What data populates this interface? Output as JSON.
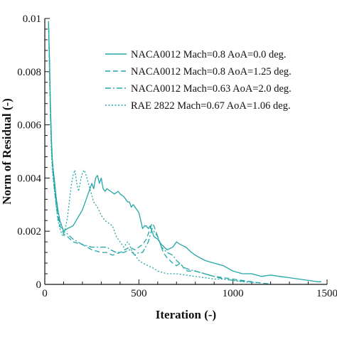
{
  "colors": {
    "series": "#23a6a6",
    "axis": "#111111",
    "background": "#ffffff"
  },
  "chart_data": {
    "type": "line",
    "title": "",
    "xlabel": "Iteration (-)",
    "ylabel": "Norm of Residual (-)",
    "xlim": [
      0,
      1500
    ],
    "ylim": [
      0,
      0.01
    ],
    "x_ticks": [
      0,
      500,
      1000,
      1500
    ],
    "x_tick_labels": [
      "0",
      "500",
      "1000",
      "1500"
    ],
    "y_ticks": [
      0,
      0.002,
      0.004,
      0.006,
      0.008,
      0.01
    ],
    "y_tick_labels": [
      "0",
      "0.002",
      "0.004",
      "0.006",
      "0.008",
      "0.01"
    ],
    "grid": false,
    "legend_position": "top-right",
    "series": [
      {
        "name": "NACA0012 Mach=0.8 AoA=0.0 deg.",
        "dash": "solid",
        "points": [
          [
            20,
            0.0098
          ],
          [
            25,
            0.0085
          ],
          [
            30,
            0.0068
          ],
          [
            35,
            0.0055
          ],
          [
            40,
            0.0047
          ],
          [
            45,
            0.0043
          ],
          [
            50,
            0.004
          ],
          [
            60,
            0.0033
          ],
          [
            70,
            0.0028
          ],
          [
            80,
            0.0024
          ],
          [
            90,
            0.0022
          ],
          [
            100,
            0.002
          ],
          [
            120,
            0.0021
          ],
          [
            150,
            0.0022
          ],
          [
            200,
            0.0028
          ],
          [
            230,
            0.0034
          ],
          [
            250,
            0.0038
          ],
          [
            260,
            0.0036
          ],
          [
            270,
            0.004
          ],
          [
            280,
            0.0041
          ],
          [
            290,
            0.0038
          ],
          [
            300,
            0.004
          ],
          [
            310,
            0.0036
          ],
          [
            320,
            0.0035
          ],
          [
            330,
            0.0036
          ],
          [
            350,
            0.0035
          ],
          [
            370,
            0.0034
          ],
          [
            390,
            0.0035
          ],
          [
            400,
            0.0034
          ],
          [
            420,
            0.0033
          ],
          [
            440,
            0.0031
          ],
          [
            450,
            0.0031
          ],
          [
            460,
            0.0029
          ],
          [
            470,
            0.003
          ],
          [
            490,
            0.0028
          ],
          [
            500,
            0.0027
          ],
          [
            510,
            0.0024
          ],
          [
            520,
            0.0021
          ],
          [
            530,
            0.0022
          ],
          [
            540,
            0.0022
          ],
          [
            550,
            0.0021
          ],
          [
            560,
            0.0022
          ],
          [
            580,
            0.0018
          ],
          [
            600,
            0.0017
          ],
          [
            620,
            0.0015
          ],
          [
            650,
            0.0013
          ],
          [
            680,
            0.0014
          ],
          [
            700,
            0.0016
          ],
          [
            720,
            0.0015
          ],
          [
            750,
            0.0014
          ],
          [
            780,
            0.0012
          ],
          [
            800,
            0.0011
          ],
          [
            850,
            0.0009
          ],
          [
            900,
            0.0008
          ],
          [
            950,
            0.0007
          ],
          [
            1000,
            0.0005
          ],
          [
            1050,
            0.0004
          ],
          [
            1100,
            0.0004
          ],
          [
            1150,
            0.0003
          ],
          [
            1200,
            0.00035
          ],
          [
            1250,
            0.0003
          ],
          [
            1300,
            0.00025
          ],
          [
            1350,
            0.0002
          ],
          [
            1400,
            0.00015
          ],
          [
            1450,
            0.0001
          ],
          [
            1470,
            0.0001
          ]
        ]
      },
      {
        "name": "NACA0012 Mach=0.8 AoA=1.25 deg.",
        "dash": "dashed",
        "points": [
          [
            20,
            0.0099
          ],
          [
            25,
            0.0082
          ],
          [
            30,
            0.0065
          ],
          [
            35,
            0.0052
          ],
          [
            40,
            0.0045
          ],
          [
            50,
            0.0037
          ],
          [
            60,
            0.003
          ],
          [
            70,
            0.0025
          ],
          [
            80,
            0.0022
          ],
          [
            90,
            0.0021
          ],
          [
            100,
            0.0019
          ],
          [
            120,
            0.0018
          ],
          [
            150,
            0.0016
          ],
          [
            200,
            0.0015
          ],
          [
            250,
            0.0013
          ],
          [
            300,
            0.0012
          ],
          [
            330,
            0.0012
          ],
          [
            360,
            0.0011
          ],
          [
            400,
            0.0012
          ],
          [
            450,
            0.0014
          ],
          [
            480,
            0.0013
          ],
          [
            500,
            0.0014
          ],
          [
            520,
            0.0015
          ],
          [
            540,
            0.0017
          ],
          [
            560,
            0.0021
          ],
          [
            570,
            0.0023
          ],
          [
            580,
            0.0022
          ],
          [
            590,
            0.002
          ],
          [
            610,
            0.0016
          ],
          [
            630,
            0.0012
          ],
          [
            650,
            0.001
          ],
          [
            680,
            0.0008
          ],
          [
            700,
            0.0007
          ],
          [
            720,
            0.0008
          ],
          [
            740,
            0.0006
          ],
          [
            760,
            0.0005
          ],
          [
            800,
            0.0005
          ],
          [
            850,
            0.0004
          ],
          [
            900,
            0.0003
          ],
          [
            950,
            0.00025
          ],
          [
            1000,
            0.0002
          ],
          [
            1050,
            0.00015
          ],
          [
            1100,
            0.0001
          ],
          [
            1150,
            5e-05
          ],
          [
            1200,
            2e-05
          ]
        ]
      },
      {
        "name": "NACA0012 Mach=0.63 AoA=2.0 deg.",
        "dash": "dashdot",
        "points": [
          [
            20,
            0.0098
          ],
          [
            25,
            0.0084
          ],
          [
            30,
            0.0066
          ],
          [
            35,
            0.0053
          ],
          [
            40,
            0.0046
          ],
          [
            50,
            0.0038
          ],
          [
            60,
            0.0031
          ],
          [
            70,
            0.0027
          ],
          [
            80,
            0.0023
          ],
          [
            90,
            0.0022
          ],
          [
            100,
            0.002
          ],
          [
            120,
            0.0019
          ],
          [
            150,
            0.0017
          ],
          [
            200,
            0.0015
          ],
          [
            250,
            0.0014
          ],
          [
            300,
            0.0014
          ],
          [
            330,
            0.0014
          ],
          [
            350,
            0.0013
          ],
          [
            380,
            0.0012
          ],
          [
            420,
            0.0012
          ],
          [
            450,
            0.0013
          ],
          [
            480,
            0.0011
          ],
          [
            500,
            0.0012
          ],
          [
            520,
            0.0012
          ],
          [
            550,
            0.0016
          ],
          [
            570,
            0.0021
          ],
          [
            580,
            0.002
          ],
          [
            600,
            0.0018
          ],
          [
            620,
            0.0014
          ],
          [
            650,
            0.0012
          ],
          [
            680,
            0.0011
          ],
          [
            700,
            0.0009
          ],
          [
            730,
            0.0007
          ],
          [
            750,
            0.0006
          ],
          [
            800,
            0.0005
          ],
          [
            850,
            0.0004
          ],
          [
            900,
            0.0003
          ],
          [
            950,
            0.0002
          ],
          [
            1000,
            0.00015
          ],
          [
            1050,
            0.00012
          ],
          [
            1080,
            0.0001
          ],
          [
            1100,
            8e-05
          ]
        ]
      },
      {
        "name": "RAE 2822 Mach=0.67 AoA=1.06 deg.",
        "dash": "dotted",
        "points": [
          [
            20,
            0.0099
          ],
          [
            25,
            0.008
          ],
          [
            30,
            0.0063
          ],
          [
            35,
            0.005
          ],
          [
            40,
            0.0043
          ],
          [
            50,
            0.0036
          ],
          [
            60,
            0.003
          ],
          [
            70,
            0.0024
          ],
          [
            80,
            0.0021
          ],
          [
            90,
            0.0019
          ],
          [
            100,
            0.0018
          ],
          [
            120,
            0.0025
          ],
          [
            140,
            0.0037
          ],
          [
            150,
            0.0041
          ],
          [
            160,
            0.0043
          ],
          [
            170,
            0.0038
          ],
          [
            180,
            0.0035
          ],
          [
            190,
            0.0039
          ],
          [
            200,
            0.0042
          ],
          [
            210,
            0.0043
          ],
          [
            220,
            0.0041
          ],
          [
            240,
            0.0036
          ],
          [
            260,
            0.0031
          ],
          [
            280,
            0.0029
          ],
          [
            300,
            0.0026
          ],
          [
            320,
            0.0024
          ],
          [
            340,
            0.0023
          ],
          [
            360,
            0.0022
          ],
          [
            380,
            0.0018
          ],
          [
            400,
            0.0016
          ],
          [
            420,
            0.0014
          ],
          [
            440,
            0.0016
          ],
          [
            450,
            0.0015
          ],
          [
            460,
            0.0013
          ],
          [
            480,
            0.0011
          ],
          [
            500,
            0.0009
          ],
          [
            520,
            0.0008
          ],
          [
            550,
            0.0007
          ],
          [
            580,
            0.0006
          ],
          [
            600,
            0.0005
          ],
          [
            650,
            0.0004
          ],
          [
            700,
            0.0004
          ],
          [
            750,
            0.00035
          ],
          [
            800,
            0.0003
          ],
          [
            850,
            0.00025
          ],
          [
            900,
            0.0002
          ],
          [
            950,
            0.0002
          ],
          [
            1000,
            0.00015
          ],
          [
            1050,
            0.0001
          ],
          [
            1100,
            8e-05
          ],
          [
            1150,
            5e-05
          ]
        ]
      }
    ]
  }
}
